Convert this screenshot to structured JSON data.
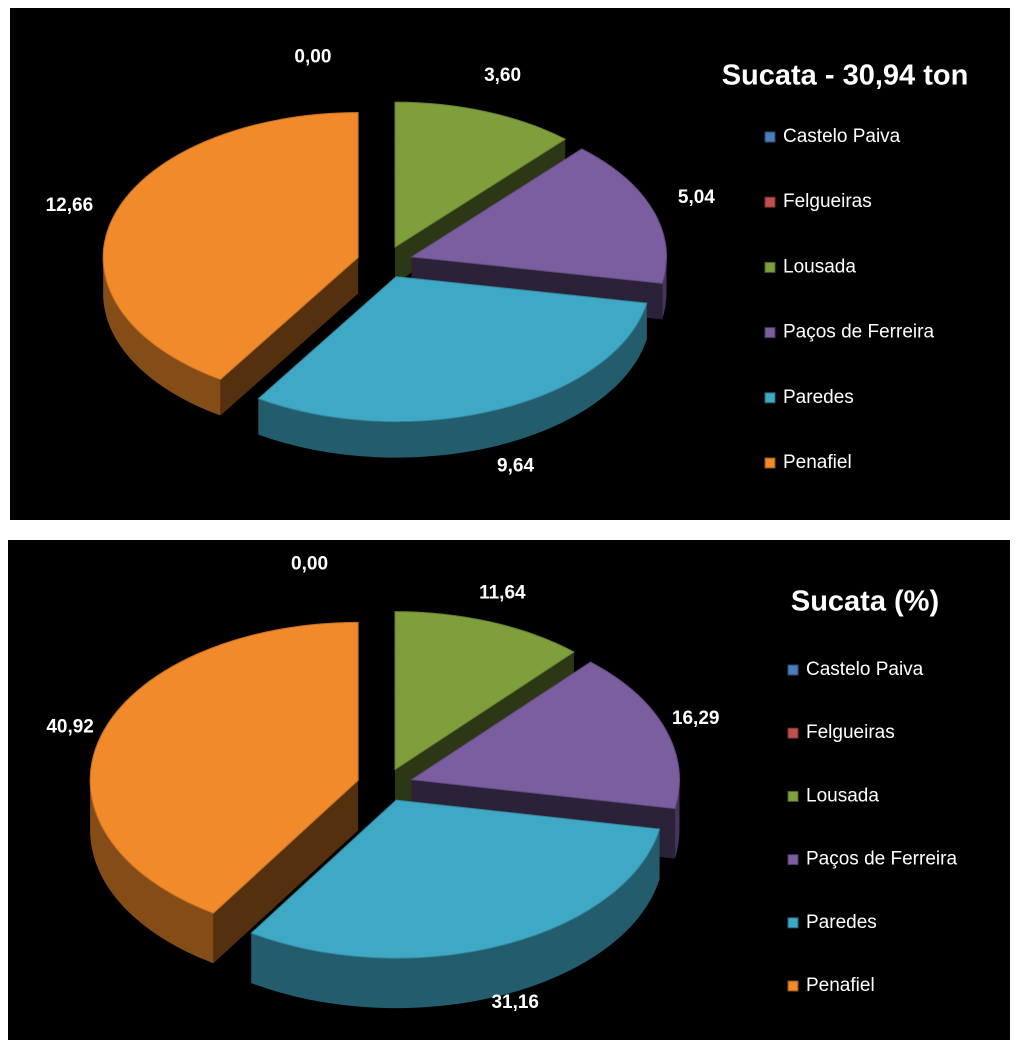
{
  "chart_data": [
    {
      "type": "pie",
      "title": "Sucata - 30,94 ton",
      "categories": [
        "Castelo Paiva",
        "Felgueiras",
        "Lousada",
        "Paços de Ferreira",
        "Paredes",
        "Penafiel"
      ],
      "values": [
        0,
        0,
        3.6,
        5.04,
        9.64,
        12.66
      ],
      "value_labels": [
        "0,00",
        null,
        "3,60",
        "5,04",
        "9,64",
        "12,66"
      ],
      "colors": [
        "#4a7ebb",
        "#c0504d",
        "#7f9f3c",
        "#7a5ea0",
        "#3fa8c4",
        "#f08a2a"
      ]
    },
    {
      "type": "pie",
      "title": "Sucata (%)",
      "categories": [
        "Castelo Paiva",
        "Felgueiras",
        "Lousada",
        "Paços de Ferreira",
        "Paredes",
        "Penafiel"
      ],
      "values": [
        0,
        0,
        11.64,
        16.29,
        31.16,
        40.92
      ],
      "value_labels": [
        "0,00",
        null,
        "11,64",
        "16,29",
        "31,16",
        "40,92"
      ],
      "colors": [
        "#4a7ebb",
        "#c0504d",
        "#7f9f3c",
        "#7a5ea0",
        "#3fa8c4",
        "#f08a2a"
      ]
    }
  ]
}
